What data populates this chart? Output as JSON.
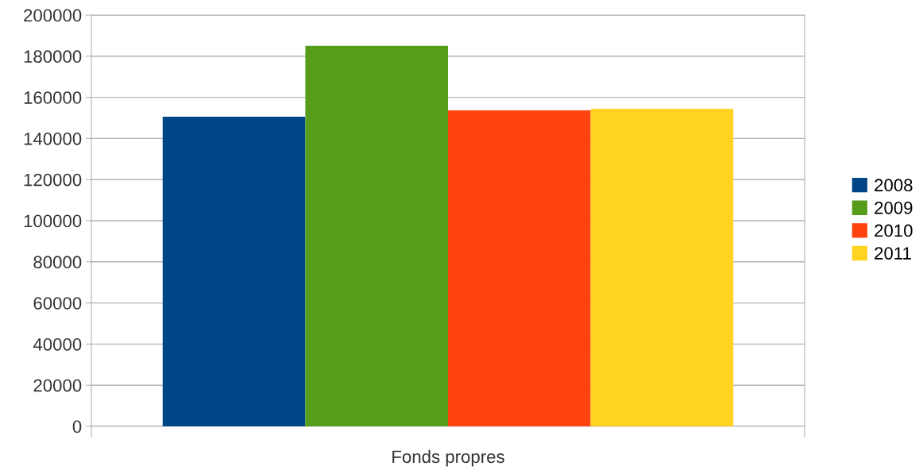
{
  "chart_data": {
    "type": "bar",
    "xlabel": "Fonds propres",
    "categories": [
      null
    ],
    "series": [
      {
        "name": "2008",
        "color": "#004586",
        "values": [
          150600
        ]
      },
      {
        "name": "2009",
        "color": "#579d1c",
        "values": [
          185000
        ]
      },
      {
        "name": "2010",
        "color": "#ff420e",
        "values": [
          153700
        ]
      },
      {
        "name": "2011",
        "color": "#ffd320",
        "values": [
          154400
        ]
      }
    ],
    "ylim": [
      0,
      200000
    ],
    "yticks": [
      0,
      20000,
      40000,
      60000,
      80000,
      100000,
      120000,
      140000,
      160000,
      180000,
      200000
    ],
    "grid": "y",
    "legend": "right"
  }
}
